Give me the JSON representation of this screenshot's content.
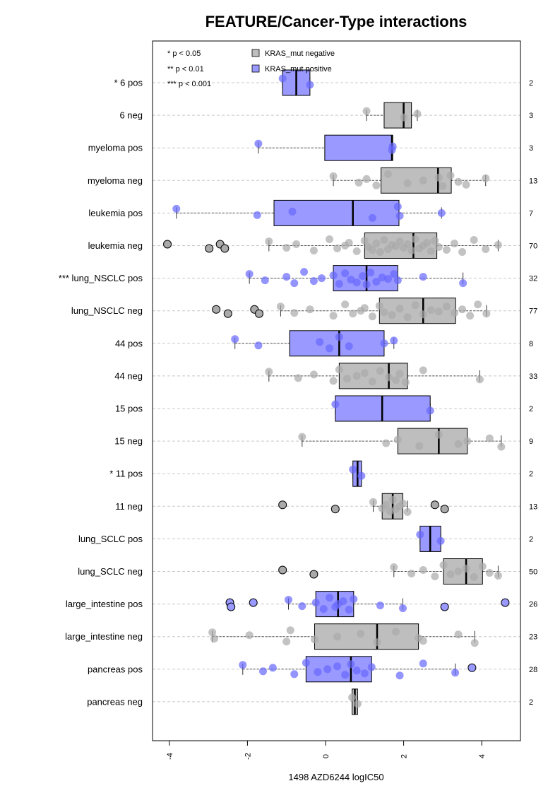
{
  "chart_data": {
    "type": "box",
    "title": "FEATURE/Cancer-Type interactions",
    "xlabel": "1498 AZD6244 logIC50",
    "ylabel": "",
    "xlim": [
      -4.4,
      5.0
    ],
    "x_ticks": [
      -4,
      -2,
      0,
      2,
      4
    ],
    "x_tick_labels": [
      "-4",
      "-2",
      "0",
      "2",
      "4"
    ],
    "grid": "horizontal dashed",
    "legend": {
      "placement": "top-left",
      "significance": [
        "* p < 0.05",
        "** p < 0.01",
        "*** p < 0.001"
      ],
      "series": [
        {
          "name": "KRAS_mut negative",
          "color": "#bebebe"
        },
        {
          "name": "KRAS_mut positive",
          "color": "#9999ff"
        }
      ]
    },
    "colors": {
      "negative_box": "#bebebe",
      "positive_box": "#9999ff",
      "negative_point": "#aaaaaa",
      "positive_point": "#6666ff"
    },
    "groups": [
      {
        "label": "* 6 pos",
        "type": "pos",
        "n": "2",
        "q1": -1.1,
        "median": -0.75,
        "q3": -0.4,
        "wlo": -1.1,
        "whi": -0.4,
        "points": [
          -1.1,
          -0.4
        ],
        "outliers": []
      },
      {
        "label": "6 neg",
        "type": "neg",
        "n": "3",
        "q1": 1.5,
        "median": 2.0,
        "q3": 2.2,
        "wlo": 1.05,
        "whi": 2.35,
        "points": [
          1.05,
          2.0,
          2.35
        ],
        "outliers": []
      },
      {
        "label": "myeloma pos",
        "type": "pos",
        "n": "3",
        "q1": -0.02,
        "median": 1.7,
        "q3": 1.72,
        "wlo": -1.72,
        "whi": 1.72,
        "points": [
          -1.72,
          1.7,
          1.72
        ],
        "outliers": []
      },
      {
        "label": "myeloma neg",
        "type": "neg",
        "n": "13",
        "q1": 1.42,
        "median": 2.88,
        "q3": 3.22,
        "wlo": 0.2,
        "whi": 4.1,
        "points": [
          0.2,
          0.85,
          1.05,
          1.3,
          1.6,
          2.1,
          2.5,
          2.9,
          3.0,
          3.2,
          3.4,
          3.6,
          4.1
        ],
        "outliers": []
      },
      {
        "label": "leukemia pos",
        "type": "pos",
        "n": "7",
        "q1": -1.32,
        "median": 0.7,
        "q3": 1.88,
        "wlo": -3.82,
        "whi": 2.97,
        "points": [
          -3.82,
          -1.75,
          -0.85,
          1.2,
          1.85,
          1.9,
          2.97
        ],
        "outliers": []
      },
      {
        "label": "leukemia neg",
        "type": "neg",
        "n": "70",
        "q1": 1.0,
        "median": 2.25,
        "q3": 2.85,
        "wlo": -1.45,
        "whi": 4.42,
        "points": [
          -1.45,
          -1.0,
          -0.75,
          -0.3,
          0.1,
          0.3,
          0.5,
          0.6,
          0.8,
          1.0,
          1.1,
          1.2,
          1.3,
          1.4,
          1.5,
          1.6,
          1.7,
          1.8,
          1.9,
          2.0,
          2.1,
          2.2,
          2.3,
          2.4,
          2.5,
          2.6,
          2.7,
          2.8,
          2.9,
          3.1,
          3.3,
          3.5,
          3.8,
          4.1,
          4.42
        ],
        "outliers": [
          -4.05,
          -2.98,
          -2.7,
          -2.58
        ]
      },
      {
        "label": "*** lung_NSCLC pos",
        "type": "pos",
        "n": "32",
        "q1": 0.2,
        "median": 1.05,
        "q3": 1.85,
        "wlo": -1.95,
        "whi": 3.52,
        "points": [
          -1.95,
          -1.55,
          -1.0,
          -0.8,
          -0.55,
          -0.3,
          -0.1,
          0.2,
          0.35,
          0.5,
          0.65,
          0.8,
          0.95,
          1.05,
          1.15,
          1.3,
          1.45,
          1.6,
          1.75,
          1.85,
          2.5,
          3.52
        ],
        "outliers": []
      },
      {
        "label": "lung_NSCLC neg",
        "type": "neg",
        "n": "77",
        "q1": 1.38,
        "median": 2.5,
        "q3": 3.33,
        "wlo": -1.15,
        "whi": 4.12,
        "points": [
          -1.15,
          -0.8,
          -0.4,
          0.2,
          0.5,
          0.7,
          0.9,
          1.0,
          1.2,
          1.38,
          1.5,
          1.7,
          1.9,
          2.1,
          2.3,
          2.5,
          2.7,
          2.9,
          3.1,
          3.3,
          3.5,
          3.7,
          3.9,
          4.12
        ],
        "outliers": [
          -2.8,
          -2.5,
          -1.82,
          -1.7
        ]
      },
      {
        "label": "44 pos",
        "type": "pos",
        "n": "8",
        "q1": -0.92,
        "median": 0.35,
        "q3": 1.5,
        "wlo": -2.32,
        "whi": 1.75,
        "points": [
          -2.32,
          -1.72,
          -0.15,
          0.1,
          0.35,
          0.6,
          1.5,
          1.75
        ],
        "outliers": []
      },
      {
        "label": "44 neg",
        "type": "neg",
        "n": "33",
        "q1": 0.35,
        "median": 1.62,
        "q3": 2.1,
        "wlo": -1.45,
        "whi": 3.95,
        "points": [
          -1.45,
          -0.7,
          -0.3,
          0.2,
          0.35,
          0.55,
          0.8,
          1.0,
          1.2,
          1.4,
          1.62,
          1.8,
          1.9,
          2.05,
          2.5,
          3.95
        ],
        "outliers": []
      },
      {
        "label": "15 pos",
        "type": "pos",
        "n": "2",
        "q1": 0.25,
        "median": 1.45,
        "q3": 2.68,
        "wlo": 0.25,
        "whi": 2.68,
        "points": [
          0.25,
          2.68
        ],
        "outliers": []
      },
      {
        "label": "15 neg",
        "type": "neg",
        "n": "9",
        "q1": 1.85,
        "median": 2.9,
        "q3": 3.63,
        "wlo": -0.6,
        "whi": 4.5,
        "points": [
          -0.6,
          1.55,
          1.85,
          2.4,
          2.9,
          3.4,
          3.63,
          4.2,
          4.5
        ],
        "outliers": []
      },
      {
        "label": "* 11 pos",
        "type": "pos",
        "n": "2",
        "q1": 0.7,
        "median": 0.82,
        "q3": 0.92,
        "wlo": 0.7,
        "whi": 0.92,
        "points": [
          0.7,
          0.92
        ],
        "outliers": []
      },
      {
        "label": "11 neg",
        "type": "neg",
        "n": "13",
        "q1": 1.45,
        "median": 1.72,
        "q3": 1.98,
        "wlo": 1.22,
        "whi": 2.1,
        "points": [
          1.22,
          1.45,
          1.55,
          1.65,
          1.72,
          1.8,
          1.9,
          1.98,
          2.1
        ],
        "outliers": [
          -1.1,
          0.25,
          2.8,
          3.05
        ]
      },
      {
        "label": "lung_SCLC pos",
        "type": "pos",
        "n": "2",
        "q1": 2.42,
        "median": 2.68,
        "q3": 2.95,
        "wlo": 2.42,
        "whi": 2.95,
        "points": [
          2.42,
          2.95
        ],
        "outliers": []
      },
      {
        "label": "lung_SCLC neg",
        "type": "neg",
        "n": "50",
        "q1": 3.02,
        "median": 3.6,
        "q3": 4.02,
        "wlo": 1.75,
        "whi": 4.42,
        "points": [
          1.75,
          2.2,
          2.5,
          2.8,
          3.02,
          3.2,
          3.4,
          3.6,
          3.8,
          4.02,
          4.2,
          4.42
        ],
        "outliers": [
          -1.1,
          -0.3
        ]
      },
      {
        "label": "large_intestine pos",
        "type": "pos",
        "n": "26",
        "q1": -0.25,
        "median": 0.32,
        "q3": 0.72,
        "wlo": -0.95,
        "whi": 1.98,
        "points": [
          -0.95,
          -0.6,
          -0.25,
          -0.05,
          0.1,
          0.25,
          0.32,
          0.45,
          0.6,
          0.72,
          1.4,
          1.98
        ],
        "outliers": [
          -2.45,
          -2.42,
          -1.85,
          3.05,
          4.6
        ]
      },
      {
        "label": "large_intestine neg",
        "type": "neg",
        "n": "23",
        "q1": -0.28,
        "median": 1.32,
        "q3": 2.38,
        "wlo": -2.9,
        "whi": 3.82,
        "points": [
          -2.9,
          -2.85,
          -1.95,
          -1.0,
          -0.9,
          -0.28,
          0.3,
          0.9,
          1.32,
          1.8,
          2.38,
          2.5,
          3.4,
          3.82
        ],
        "outliers": []
      },
      {
        "label": "pancreas pos",
        "type": "pos",
        "n": "28",
        "q1": -0.5,
        "median": 0.65,
        "q3": 1.18,
        "wlo": -2.12,
        "whi": 3.32,
        "points": [
          -2.12,
          -1.6,
          -1.35,
          -0.8,
          -0.5,
          -0.2,
          0.05,
          0.3,
          0.5,
          0.65,
          0.8,
          1.0,
          1.18,
          1.9,
          2.5,
          3.32
        ],
        "outliers": [
          3.75
        ]
      },
      {
        "label": "pancreas neg",
        "type": "neg",
        "n": "2",
        "q1": 0.68,
        "median": 0.75,
        "q3": 0.82,
        "wlo": 0.68,
        "whi": 0.82,
        "points": [
          0.68,
          0.82
        ],
        "outliers": []
      }
    ]
  }
}
